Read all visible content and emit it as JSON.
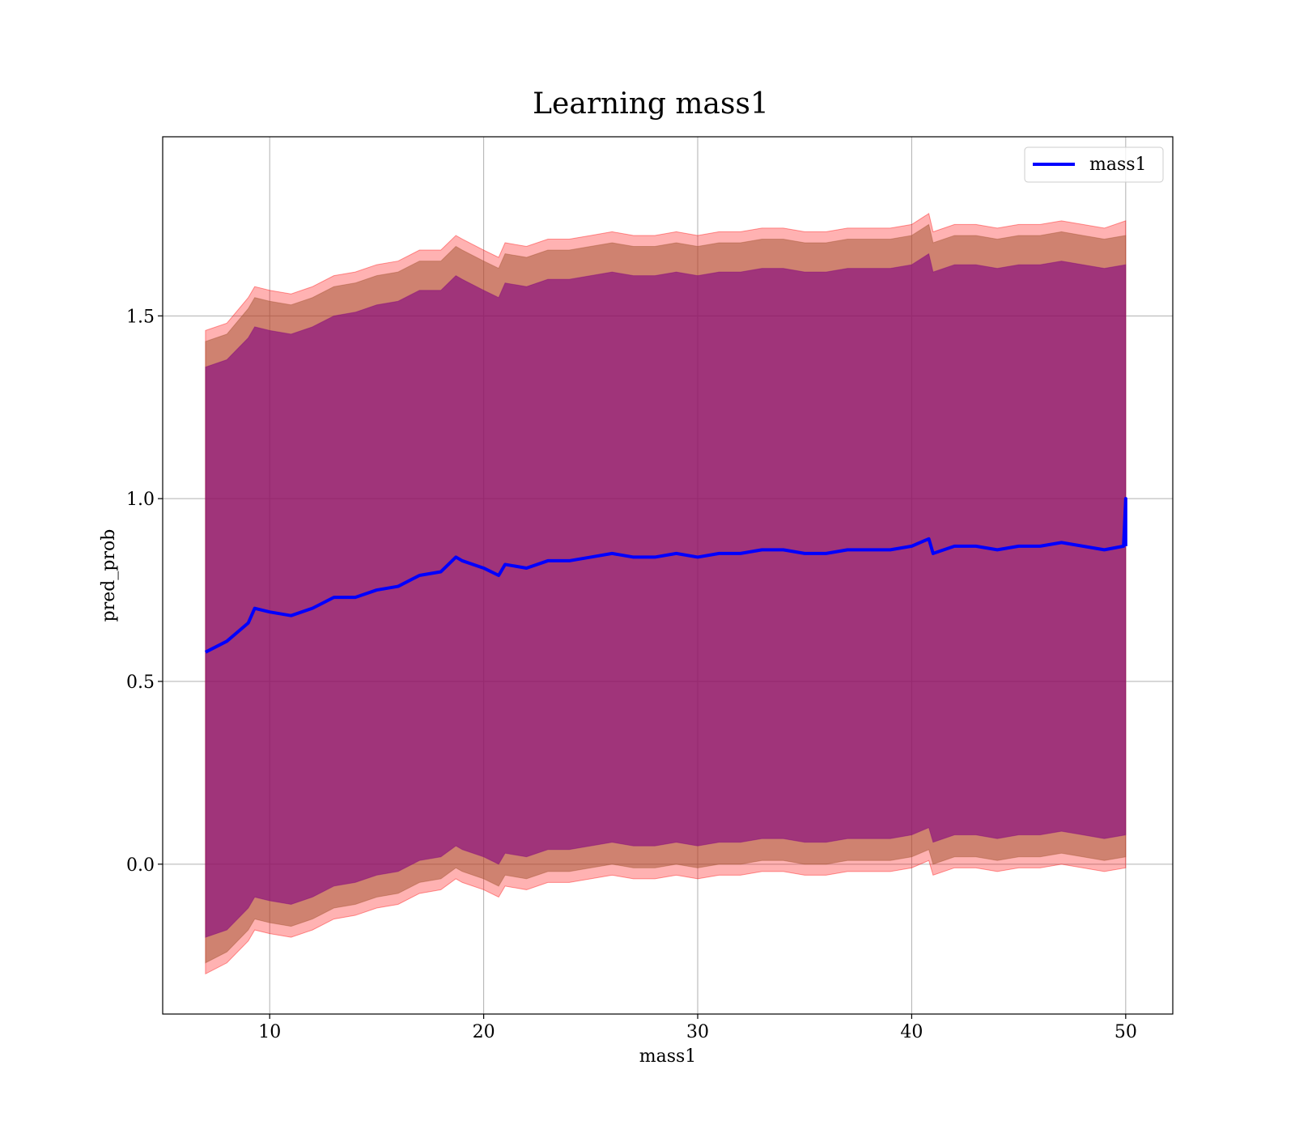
{
  "chart_data": {
    "type": "line",
    "title": "Learning mass1",
    "xlabel": "mass1",
    "ylabel": "pred_prob",
    "xlim": [
      5,
      52.2
    ],
    "ylim": [
      -0.41,
      1.99
    ],
    "xticks": [
      10,
      20,
      30,
      40,
      50
    ],
    "xtick_labels": [
      "10",
      "20",
      "30",
      "40",
      "50"
    ],
    "yticks": [
      0.0,
      0.5,
      1.0,
      1.5
    ],
    "ytick_labels": [
      "0.0",
      "0.5",
      "1.0",
      "1.5"
    ],
    "grid": true,
    "legend": {
      "position": "top-right",
      "entries": [
        "mass1"
      ]
    },
    "colors": {
      "line": "#0000ff",
      "outer_band": "#ff0000",
      "middle_band": "#a0522d",
      "inner_band": "#800080"
    },
    "series": [
      {
        "name": "mass1",
        "x": [
          7.0,
          8.0,
          9.0,
          9.3,
          10.0,
          11.0,
          12.0,
          13.0,
          14.0,
          15.0,
          16.0,
          17.0,
          18.0,
          18.7,
          19.0,
          20.0,
          20.7,
          21.0,
          22.0,
          23.0,
          24.0,
          25.0,
          26.0,
          27.0,
          28.0,
          29.0,
          30.0,
          31.0,
          32.0,
          33.0,
          34.0,
          35.0,
          36.0,
          37.0,
          38.0,
          39.0,
          40.0,
          40.8,
          41.0,
          42.0,
          43.0,
          44.0,
          45.0,
          46.0,
          47.0,
          48.0,
          49.0,
          49.9,
          50.0,
          50.0
        ],
        "y": [
          0.58,
          0.61,
          0.66,
          0.7,
          0.69,
          0.68,
          0.7,
          0.73,
          0.73,
          0.75,
          0.76,
          0.79,
          0.8,
          0.84,
          0.83,
          0.81,
          0.79,
          0.82,
          0.81,
          0.83,
          0.83,
          0.84,
          0.85,
          0.84,
          0.84,
          0.85,
          0.84,
          0.85,
          0.85,
          0.86,
          0.86,
          0.85,
          0.85,
          0.86,
          0.86,
          0.86,
          0.87,
          0.89,
          0.85,
          0.87,
          0.87,
          0.86,
          0.87,
          0.87,
          0.88,
          0.87,
          0.86,
          0.87,
          1.0,
          0.87
        ]
      }
    ],
    "bands": [
      {
        "label": "outer",
        "x": [
          7.0,
          8.0,
          9.0,
          9.3,
          10.0,
          11.0,
          12.0,
          13.0,
          14.0,
          15.0,
          16.0,
          17.0,
          18.0,
          18.7,
          19.0,
          20.0,
          20.7,
          21.0,
          22.0,
          23.0,
          24.0,
          25.0,
          26.0,
          27.0,
          28.0,
          29.0,
          30.0,
          31.0,
          32.0,
          33.0,
          34.0,
          35.0,
          36.0,
          37.0,
          38.0,
          39.0,
          40.0,
          40.8,
          41.0,
          42.0,
          43.0,
          44.0,
          45.0,
          46.0,
          47.0,
          48.0,
          49.0,
          50.0
        ],
        "upper": [
          1.46,
          1.48,
          1.55,
          1.58,
          1.57,
          1.56,
          1.58,
          1.61,
          1.62,
          1.64,
          1.65,
          1.68,
          1.68,
          1.72,
          1.71,
          1.68,
          1.66,
          1.7,
          1.69,
          1.71,
          1.71,
          1.72,
          1.73,
          1.72,
          1.72,
          1.73,
          1.72,
          1.73,
          1.73,
          1.74,
          1.74,
          1.73,
          1.73,
          1.74,
          1.74,
          1.74,
          1.75,
          1.78,
          1.73,
          1.75,
          1.75,
          1.74,
          1.75,
          1.75,
          1.76,
          1.75,
          1.74,
          1.76
        ],
        "lower": [
          -0.3,
          -0.27,
          -0.21,
          -0.18,
          -0.19,
          -0.2,
          -0.18,
          -0.15,
          -0.14,
          -0.12,
          -0.11,
          -0.08,
          -0.07,
          -0.04,
          -0.05,
          -0.07,
          -0.09,
          -0.06,
          -0.07,
          -0.05,
          -0.05,
          -0.04,
          -0.03,
          -0.04,
          -0.04,
          -0.03,
          -0.04,
          -0.03,
          -0.03,
          -0.02,
          -0.02,
          -0.03,
          -0.03,
          -0.02,
          -0.02,
          -0.02,
          -0.01,
          0.01,
          -0.03,
          -0.01,
          -0.01,
          -0.02,
          -0.01,
          -0.01,
          0.0,
          -0.01,
          -0.02,
          -0.01
        ]
      },
      {
        "label": "middle",
        "x": [
          7.0,
          8.0,
          9.0,
          9.3,
          10.0,
          11.0,
          12.0,
          13.0,
          14.0,
          15.0,
          16.0,
          17.0,
          18.0,
          18.7,
          19.0,
          20.0,
          20.7,
          21.0,
          22.0,
          23.0,
          24.0,
          25.0,
          26.0,
          27.0,
          28.0,
          29.0,
          30.0,
          31.0,
          32.0,
          33.0,
          34.0,
          35.0,
          36.0,
          37.0,
          38.0,
          39.0,
          40.0,
          40.8,
          41.0,
          42.0,
          43.0,
          44.0,
          45.0,
          46.0,
          47.0,
          48.0,
          49.0,
          50.0
        ],
        "upper": [
          1.43,
          1.45,
          1.52,
          1.55,
          1.54,
          1.53,
          1.55,
          1.58,
          1.59,
          1.61,
          1.62,
          1.65,
          1.65,
          1.69,
          1.68,
          1.65,
          1.63,
          1.67,
          1.66,
          1.68,
          1.68,
          1.69,
          1.7,
          1.69,
          1.69,
          1.7,
          1.69,
          1.7,
          1.7,
          1.71,
          1.71,
          1.7,
          1.7,
          1.71,
          1.71,
          1.71,
          1.72,
          1.75,
          1.7,
          1.72,
          1.72,
          1.71,
          1.72,
          1.72,
          1.73,
          1.72,
          1.71,
          1.72
        ],
        "lower": [
          -0.27,
          -0.24,
          -0.18,
          -0.15,
          -0.16,
          -0.17,
          -0.15,
          -0.12,
          -0.11,
          -0.09,
          -0.08,
          -0.05,
          -0.04,
          -0.01,
          -0.02,
          -0.04,
          -0.06,
          -0.03,
          -0.04,
          -0.02,
          -0.02,
          -0.01,
          0.0,
          -0.01,
          -0.01,
          0.0,
          -0.01,
          0.0,
          0.0,
          0.01,
          0.01,
          0.0,
          0.0,
          0.01,
          0.01,
          0.01,
          0.02,
          0.04,
          0.0,
          0.02,
          0.02,
          0.01,
          0.02,
          0.02,
          0.03,
          0.02,
          0.01,
          0.02
        ]
      },
      {
        "label": "inner",
        "x": [
          7.0,
          8.0,
          9.0,
          9.3,
          10.0,
          11.0,
          12.0,
          13.0,
          14.0,
          15.0,
          16.0,
          17.0,
          18.0,
          18.7,
          19.0,
          20.0,
          20.7,
          21.0,
          22.0,
          23.0,
          24.0,
          25.0,
          26.0,
          27.0,
          28.0,
          29.0,
          30.0,
          31.0,
          32.0,
          33.0,
          34.0,
          35.0,
          36.0,
          37.0,
          38.0,
          39.0,
          40.0,
          40.8,
          41.0,
          42.0,
          43.0,
          44.0,
          45.0,
          46.0,
          47.0,
          48.0,
          49.0,
          50.0
        ],
        "upper": [
          1.36,
          1.38,
          1.44,
          1.47,
          1.46,
          1.45,
          1.47,
          1.5,
          1.51,
          1.53,
          1.54,
          1.57,
          1.57,
          1.61,
          1.6,
          1.57,
          1.55,
          1.59,
          1.58,
          1.6,
          1.6,
          1.61,
          1.62,
          1.61,
          1.61,
          1.62,
          1.61,
          1.62,
          1.62,
          1.63,
          1.63,
          1.62,
          1.62,
          1.63,
          1.63,
          1.63,
          1.64,
          1.67,
          1.62,
          1.64,
          1.64,
          1.63,
          1.64,
          1.64,
          1.65,
          1.64,
          1.63,
          1.64
        ],
        "lower": [
          -0.2,
          -0.18,
          -0.12,
          -0.09,
          -0.1,
          -0.11,
          -0.09,
          -0.06,
          -0.05,
          -0.03,
          -0.02,
          0.01,
          0.02,
          0.05,
          0.04,
          0.02,
          0.0,
          0.03,
          0.02,
          0.04,
          0.04,
          0.05,
          0.06,
          0.05,
          0.05,
          0.06,
          0.05,
          0.06,
          0.06,
          0.07,
          0.07,
          0.06,
          0.06,
          0.07,
          0.07,
          0.07,
          0.08,
          0.1,
          0.06,
          0.08,
          0.08,
          0.07,
          0.08,
          0.08,
          0.09,
          0.08,
          0.07,
          0.08
        ]
      }
    ]
  }
}
